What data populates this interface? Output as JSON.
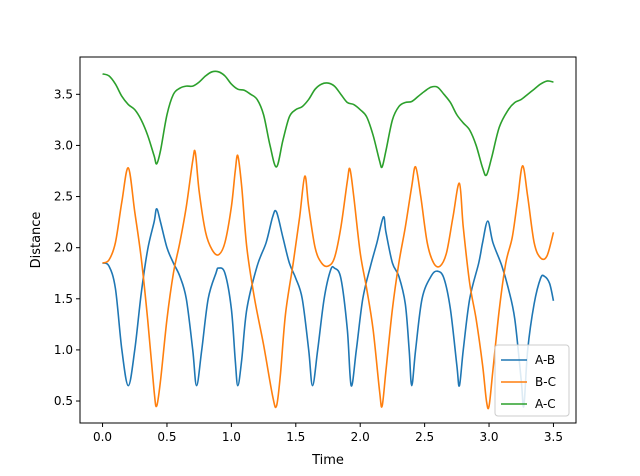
{
  "chart_data": {
    "type": "line",
    "title": "",
    "xlabel": "Time",
    "ylabel": "Distance",
    "xlim": [
      -0.175,
      3.675
    ],
    "ylim": [
      0.285,
      3.865
    ],
    "xticks": [
      0.0,
      0.5,
      1.0,
      1.5,
      2.0,
      2.5,
      3.0,
      3.5
    ],
    "xtick_labels": [
      "0.0",
      "0.5",
      "1.0",
      "1.5",
      "2.0",
      "2.5",
      "3.0",
      "3.5"
    ],
    "yticks": [
      0.5,
      1.0,
      1.5,
      2.0,
      2.5,
      3.0,
      3.5
    ],
    "ytick_labels": [
      "0.5",
      "1.0",
      "1.5",
      "2.0",
      "2.5",
      "3.0",
      "3.5"
    ],
    "grid": false,
    "legend_position": "lower-right",
    "series": [
      {
        "name": "A-B",
        "color": "#1f77b4",
        "points": [
          [
            0.0,
            1.85
          ],
          [
            0.05,
            1.82
          ],
          [
            0.1,
            1.6
          ],
          [
            0.15,
            1.0
          ],
          [
            0.2,
            0.65
          ],
          [
            0.25,
            1.0
          ],
          [
            0.3,
            1.55
          ],
          [
            0.35,
            1.98
          ],
          [
            0.4,
            2.25
          ],
          [
            0.42,
            2.38
          ],
          [
            0.45,
            2.25
          ],
          [
            0.5,
            2.0
          ],
          [
            0.55,
            1.85
          ],
          [
            0.6,
            1.72
          ],
          [
            0.65,
            1.5
          ],
          [
            0.7,
            1.0
          ],
          [
            0.73,
            0.65
          ],
          [
            0.77,
            1.0
          ],
          [
            0.82,
            1.5
          ],
          [
            0.88,
            1.75
          ],
          [
            0.9,
            1.8
          ],
          [
            0.95,
            1.75
          ],
          [
            1.0,
            1.4
          ],
          [
            1.03,
            0.9
          ],
          [
            1.05,
            0.65
          ],
          [
            1.08,
            0.9
          ],
          [
            1.12,
            1.4
          ],
          [
            1.2,
            1.82
          ],
          [
            1.27,
            2.05
          ],
          [
            1.32,
            2.3
          ],
          [
            1.35,
            2.35
          ],
          [
            1.4,
            2.1
          ],
          [
            1.45,
            1.85
          ],
          [
            1.5,
            1.7
          ],
          [
            1.55,
            1.5
          ],
          [
            1.6,
            1.0
          ],
          [
            1.63,
            0.65
          ],
          [
            1.67,
            1.0
          ],
          [
            1.72,
            1.5
          ],
          [
            1.77,
            1.78
          ],
          [
            1.8,
            1.8
          ],
          [
            1.85,
            1.7
          ],
          [
            1.9,
            1.2
          ],
          [
            1.93,
            0.65
          ],
          [
            1.97,
            1.0
          ],
          [
            2.02,
            1.5
          ],
          [
            2.08,
            1.82
          ],
          [
            2.13,
            2.05
          ],
          [
            2.18,
            2.3
          ],
          [
            2.2,
            2.15
          ],
          [
            2.25,
            1.85
          ],
          [
            2.3,
            1.72
          ],
          [
            2.35,
            1.45
          ],
          [
            2.38,
            1.0
          ],
          [
            2.4,
            0.65
          ],
          [
            2.43,
            1.0
          ],
          [
            2.48,
            1.5
          ],
          [
            2.55,
            1.72
          ],
          [
            2.6,
            1.77
          ],
          [
            2.65,
            1.7
          ],
          [
            2.7,
            1.4
          ],
          [
            2.75,
            0.85
          ],
          [
            2.77,
            0.65
          ],
          [
            2.8,
            1.0
          ],
          [
            2.85,
            1.5
          ],
          [
            2.92,
            1.85
          ],
          [
            2.95,
            2.05
          ],
          [
            2.99,
            2.26
          ],
          [
            3.03,
            2.05
          ],
          [
            3.1,
            1.82
          ],
          [
            3.15,
            1.6
          ],
          [
            3.2,
            1.3
          ],
          [
            3.25,
            0.7
          ],
          [
            3.27,
            0.45
          ],
          [
            3.3,
            1.0
          ],
          [
            3.35,
            1.45
          ],
          [
            3.4,
            1.7
          ],
          [
            3.43,
            1.72
          ],
          [
            3.47,
            1.65
          ],
          [
            3.5,
            1.48
          ]
        ]
      },
      {
        "name": "B-C",
        "color": "#ff7f0e",
        "points": [
          [
            0.0,
            1.85
          ],
          [
            0.05,
            1.88
          ],
          [
            0.1,
            2.05
          ],
          [
            0.15,
            2.45
          ],
          [
            0.2,
            2.78
          ],
          [
            0.25,
            2.35
          ],
          [
            0.3,
            1.9
          ],
          [
            0.35,
            1.3
          ],
          [
            0.4,
            0.6
          ],
          [
            0.42,
            0.45
          ],
          [
            0.45,
            0.7
          ],
          [
            0.5,
            1.3
          ],
          [
            0.55,
            1.75
          ],
          [
            0.6,
            2.05
          ],
          [
            0.65,
            2.4
          ],
          [
            0.7,
            2.85
          ],
          [
            0.72,
            2.93
          ],
          [
            0.75,
            2.55
          ],
          [
            0.8,
            2.15
          ],
          [
            0.85,
            1.98
          ],
          [
            0.9,
            1.93
          ],
          [
            0.95,
            2.05
          ],
          [
            1.0,
            2.4
          ],
          [
            1.03,
            2.75
          ],
          [
            1.05,
            2.9
          ],
          [
            1.08,
            2.6
          ],
          [
            1.12,
            2.0
          ],
          [
            1.18,
            1.5
          ],
          [
            1.25,
            1.05
          ],
          [
            1.32,
            0.55
          ],
          [
            1.35,
            0.45
          ],
          [
            1.38,
            0.75
          ],
          [
            1.42,
            1.35
          ],
          [
            1.48,
            1.85
          ],
          [
            1.53,
            2.3
          ],
          [
            1.57,
            2.7
          ],
          [
            1.6,
            2.4
          ],
          [
            1.65,
            2.0
          ],
          [
            1.7,
            1.85
          ],
          [
            1.75,
            1.82
          ],
          [
            1.8,
            1.9
          ],
          [
            1.85,
            2.2
          ],
          [
            1.9,
            2.65
          ],
          [
            1.92,
            2.77
          ],
          [
            1.95,
            2.5
          ],
          [
            2.0,
            1.95
          ],
          [
            2.05,
            1.6
          ],
          [
            2.1,
            1.2
          ],
          [
            2.15,
            0.6
          ],
          [
            2.17,
            0.45
          ],
          [
            2.2,
            0.8
          ],
          [
            2.25,
            1.4
          ],
          [
            2.3,
            1.85
          ],
          [
            2.35,
            2.2
          ],
          [
            2.4,
            2.6
          ],
          [
            2.43,
            2.79
          ],
          [
            2.47,
            2.5
          ],
          [
            2.52,
            2.05
          ],
          [
            2.57,
            1.85
          ],
          [
            2.62,
            1.82
          ],
          [
            2.67,
            1.95
          ],
          [
            2.72,
            2.3
          ],
          [
            2.77,
            2.63
          ],
          [
            2.8,
            2.2
          ],
          [
            2.85,
            1.65
          ],
          [
            2.9,
            1.3
          ],
          [
            2.95,
            0.85
          ],
          [
            2.98,
            0.5
          ],
          [
            3.0,
            0.45
          ],
          [
            3.03,
            0.8
          ],
          [
            3.08,
            1.4
          ],
          [
            3.13,
            1.85
          ],
          [
            3.18,
            2.1
          ],
          [
            3.22,
            2.45
          ],
          [
            3.26,
            2.8
          ],
          [
            3.3,
            2.5
          ],
          [
            3.35,
            2.05
          ],
          [
            3.4,
            1.9
          ],
          [
            3.45,
            1.92
          ],
          [
            3.5,
            2.15
          ]
        ]
      },
      {
        "name": "A-C",
        "color": "#2ca02c",
        "points": [
          [
            0.0,
            3.7
          ],
          [
            0.05,
            3.68
          ],
          [
            0.1,
            3.6
          ],
          [
            0.15,
            3.48
          ],
          [
            0.2,
            3.4
          ],
          [
            0.25,
            3.35
          ],
          [
            0.3,
            3.25
          ],
          [
            0.35,
            3.1
          ],
          [
            0.4,
            2.9
          ],
          [
            0.42,
            2.82
          ],
          [
            0.45,
            2.95
          ],
          [
            0.5,
            3.3
          ],
          [
            0.55,
            3.5
          ],
          [
            0.6,
            3.56
          ],
          [
            0.65,
            3.58
          ],
          [
            0.7,
            3.58
          ],
          [
            0.75,
            3.62
          ],
          [
            0.8,
            3.68
          ],
          [
            0.85,
            3.72
          ],
          [
            0.9,
            3.72
          ],
          [
            0.95,
            3.68
          ],
          [
            1.0,
            3.6
          ],
          [
            1.05,
            3.55
          ],
          [
            1.1,
            3.54
          ],
          [
            1.15,
            3.5
          ],
          [
            1.2,
            3.45
          ],
          [
            1.25,
            3.3
          ],
          [
            1.3,
            3.0
          ],
          [
            1.35,
            2.79
          ],
          [
            1.4,
            3.05
          ],
          [
            1.45,
            3.28
          ],
          [
            1.5,
            3.35
          ],
          [
            1.55,
            3.38
          ],
          [
            1.6,
            3.45
          ],
          [
            1.65,
            3.55
          ],
          [
            1.7,
            3.6
          ],
          [
            1.75,
            3.61
          ],
          [
            1.8,
            3.58
          ],
          [
            1.85,
            3.5
          ],
          [
            1.9,
            3.42
          ],
          [
            1.95,
            3.4
          ],
          [
            2.0,
            3.35
          ],
          [
            2.05,
            3.28
          ],
          [
            2.1,
            3.1
          ],
          [
            2.15,
            2.85
          ],
          [
            2.17,
            2.79
          ],
          [
            2.2,
            2.95
          ],
          [
            2.25,
            3.25
          ],
          [
            2.3,
            3.38
          ],
          [
            2.35,
            3.42
          ],
          [
            2.4,
            3.43
          ],
          [
            2.45,
            3.48
          ],
          [
            2.5,
            3.53
          ],
          [
            2.55,
            3.57
          ],
          [
            2.6,
            3.57
          ],
          [
            2.65,
            3.5
          ],
          [
            2.7,
            3.42
          ],
          [
            2.75,
            3.3
          ],
          [
            2.8,
            3.22
          ],
          [
            2.85,
            3.15
          ],
          [
            2.9,
            3.0
          ],
          [
            2.95,
            2.78
          ],
          [
            2.98,
            2.71
          ],
          [
            3.02,
            2.88
          ],
          [
            3.08,
            3.18
          ],
          [
            3.15,
            3.35
          ],
          [
            3.2,
            3.42
          ],
          [
            3.25,
            3.45
          ],
          [
            3.3,
            3.5
          ],
          [
            3.35,
            3.55
          ],
          [
            3.4,
            3.6
          ],
          [
            3.45,
            3.63
          ],
          [
            3.5,
            3.62
          ]
        ]
      }
    ]
  }
}
